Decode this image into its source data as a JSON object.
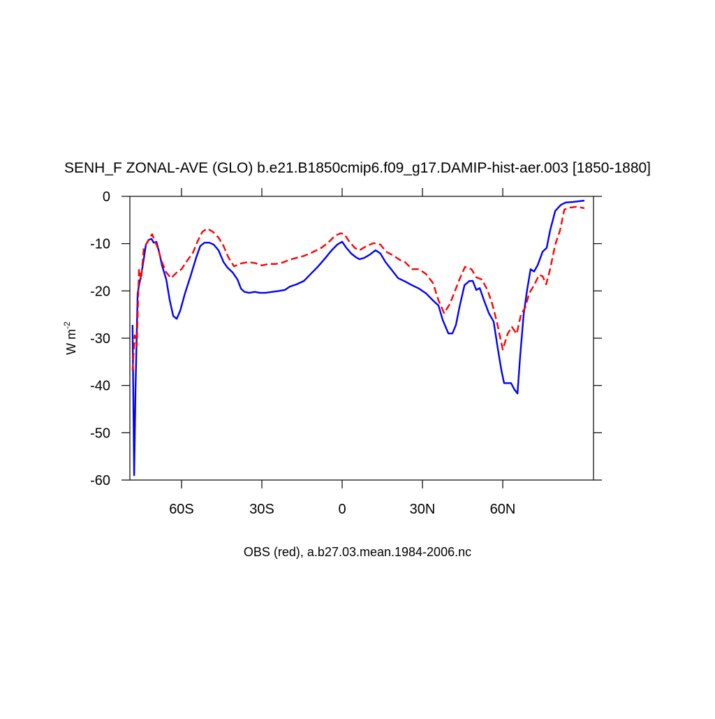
{
  "chart_data": {
    "type": "line",
    "title": "SENH_F ZONAL-AVE (GLO) b.e21.B1850cmip6.f09_g17.DAMIP-hist-aer.003 [1850-1880]",
    "xlabel": "OBS (red), a.b27.03.mean.1984-2006.nc",
    "ylabel": "W m",
    "ylabel_exponent": "-2",
    "xlim": [
      -79.3,
      93.9
    ],
    "ylim": [
      -60,
      0
    ],
    "xticks": [
      {
        "value": -60,
        "label": "60S"
      },
      {
        "value": -30,
        "label": "30S"
      },
      0,
      {
        "value": 30,
        "label": "30N"
      },
      {
        "value": 60,
        "label": "60N"
      }
    ],
    "yticks": [
      0,
      -10,
      -20,
      -30,
      -40,
      -50,
      -60
    ],
    "series": [
      {
        "color": "#0000ff",
        "dash": "solid",
        "x": [
          -78.3,
          -77.7,
          -77.2,
          -76.4,
          -75.7,
          -74.9,
          -74.1,
          -73.3,
          -72.3,
          -71.2,
          -70.4,
          -69.4,
          -68.4,
          -67.3,
          -65.7,
          -64.4,
          -63.1,
          -61.8,
          -60.5,
          -58.7,
          -56.6,
          -54.5,
          -53,
          -51.4,
          -49.6,
          -48,
          -46.2,
          -44.3,
          -42.8,
          -40.9,
          -39.1,
          -37.8,
          -36.5,
          -34.7,
          -32.6,
          -30.8,
          -28.7,
          -26.1,
          -23.5,
          -21.4,
          -19.6,
          -17,
          -14.3,
          -11.7,
          -9.1,
          -6.5,
          -3.9,
          -1.8,
          0,
          1.6,
          3.4,
          5.2,
          6.5,
          8.3,
          10.4,
          12.5,
          14.3,
          16.2,
          18.3,
          20.9,
          23.5,
          26.1,
          28.7,
          31.3,
          33.9,
          36,
          37.6,
          39.7,
          41.2,
          42.5,
          43.8,
          45.7,
          47.5,
          48.8,
          50.1,
          51.4,
          53,
          54.8,
          56.6,
          58.2,
          59.5,
          60.5,
          62.1,
          63.1,
          64.4,
          65.5,
          66.5,
          67.8,
          69.1,
          70.4,
          71.7,
          73,
          74.9,
          76.4,
          77.7,
          79.6,
          81.7,
          83.5,
          86.1,
          90.5
        ],
        "values": [
          -27.2,
          -59,
          -41,
          -20.5,
          -18.3,
          -16.1,
          -13.2,
          -10.2,
          -9.2,
          -9,
          -9.8,
          -9.6,
          -11.7,
          -14.6,
          -17.6,
          -22,
          -25.3,
          -25.9,
          -24.2,
          -20.5,
          -16.8,
          -12.9,
          -10.5,
          -9.8,
          -9.8,
          -10.2,
          -11.4,
          -13.9,
          -15.1,
          -16.1,
          -17.6,
          -19.5,
          -20.2,
          -20.4,
          -20.2,
          -20.4,
          -20.4,
          -20.2,
          -20,
          -19.8,
          -19.1,
          -18.6,
          -17.9,
          -16.4,
          -14.9,
          -13.2,
          -11.4,
          -10.2,
          -9.6,
          -10.9,
          -12.1,
          -12.9,
          -13.3,
          -13,
          -12.3,
          -11.4,
          -12.1,
          -13.9,
          -15.4,
          -17.3,
          -18,
          -18.8,
          -19.5,
          -20.5,
          -22,
          -23.1,
          -26.2,
          -29,
          -29,
          -27.2,
          -23.5,
          -18.8,
          -17.9,
          -17.9,
          -19.8,
          -19.4,
          -22,
          -24.7,
          -26.5,
          -32.4,
          -36.8,
          -39.5,
          -39.5,
          -39.5,
          -40.9,
          -41.7,
          -33.8,
          -25,
          -19.8,
          -15.4,
          -15.9,
          -14.6,
          -11.7,
          -10.9,
          -7.2,
          -3.1,
          -1.8,
          -1.3,
          -1.2,
          -0.9
        ]
      },
      {
        "color": "#ff0000",
        "dash": "dashed",
        "x": [
          -78.3,
          -77.5,
          -76.7,
          -75.9,
          -75.1,
          -74.1,
          -72.5,
          -71,
          -69.9,
          -68.9,
          -67.3,
          -65.7,
          -63.9,
          -61.8,
          -60,
          -57.9,
          -55.8,
          -54,
          -52.2,
          -50.4,
          -48.3,
          -46.2,
          -44.3,
          -42.5,
          -40.4,
          -37.8,
          -35.2,
          -32.6,
          -30,
          -27.4,
          -24.8,
          -22.2,
          -19.6,
          -17,
          -14.3,
          -11.7,
          -7.8,
          -5.2,
          -2.6,
          -0.5,
          0.8,
          2.6,
          4.7,
          6.5,
          9.1,
          11.7,
          14.3,
          16.4,
          18.8,
          21.4,
          23.5,
          26.1,
          28.7,
          31.3,
          33.9,
          36,
          38.1,
          40.2,
          42.3,
          43.8,
          45.9,
          48.3,
          50.1,
          52.2,
          54.3,
          56.1,
          57.9,
          60,
          61.8,
          63.4,
          65.2,
          66.8,
          68.4,
          69.9,
          71.7,
          73.6,
          74.9,
          76.2,
          77.7,
          79.6,
          81.4,
          83,
          84.8,
          87.4,
          90.5
        ],
        "values": [
          -36.8,
          -29.4,
          -31.6,
          -15.4,
          -17.6,
          -10.9,
          -9.5,
          -8,
          -9.5,
          -10.9,
          -13.9,
          -16.1,
          -17.3,
          -16.1,
          -15.4,
          -13.6,
          -12,
          -9.5,
          -7.5,
          -6.8,
          -7.5,
          -8.7,
          -10.5,
          -12.9,
          -14.8,
          -14.2,
          -13.9,
          -14.1,
          -14.6,
          -14.3,
          -14.3,
          -14,
          -13.4,
          -13,
          -12.6,
          -12,
          -10.9,
          -9.8,
          -8.3,
          -7.8,
          -8,
          -9.5,
          -10.9,
          -11.4,
          -10.5,
          -9.9,
          -10.2,
          -11.7,
          -12.4,
          -13.4,
          -13.9,
          -15.4,
          -15.4,
          -16.4,
          -18.3,
          -22,
          -24.7,
          -22.8,
          -19.8,
          -17.6,
          -14.9,
          -15.4,
          -17.1,
          -17.6,
          -19.8,
          -22.8,
          -26.8,
          -32.4,
          -29.1,
          -27.6,
          -29.1,
          -25,
          -23.5,
          -20.5,
          -18.8,
          -16.6,
          -16.9,
          -18.6,
          -15.4,
          -10.2,
          -7.2,
          -2.8,
          -2.4,
          -2.2,
          -2.5
        ]
      }
    ]
  }
}
